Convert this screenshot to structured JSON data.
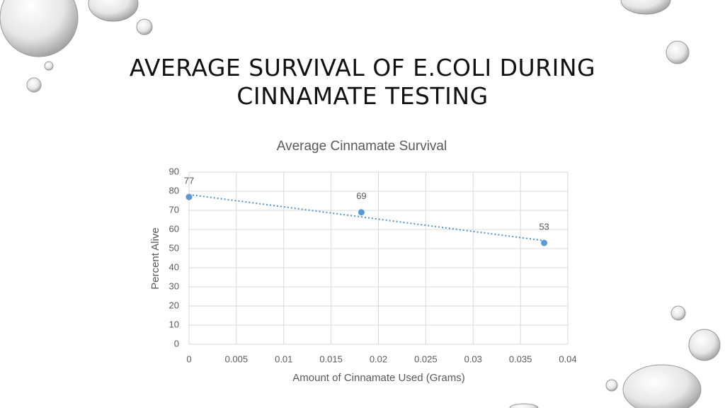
{
  "slide": {
    "title": "AVERAGE SURVIVAL OF E.COLI DURING CINNAMATE TESTING"
  },
  "chart_data": {
    "type": "scatter",
    "title": "Average Cinnamate Survival",
    "x_label": "Amount of Cinnamate Used (Grams)",
    "y_label": "Percent Alive",
    "x": [
      0,
      0.0182,
      0.0375
    ],
    "values": [
      77,
      69,
      53
    ],
    "color": "#5b9bd5",
    "data_labels": true,
    "trendline": "linear",
    "xlim": [
      0,
      0.04
    ],
    "xticks": [
      0,
      0.005,
      0.01,
      0.015,
      0.02,
      0.025,
      0.03,
      0.035,
      0.04
    ],
    "ylim": [
      0,
      90
    ],
    "yticks": [
      0,
      10,
      20,
      30,
      40,
      50,
      60,
      70,
      80,
      90
    ],
    "grid": true
  }
}
